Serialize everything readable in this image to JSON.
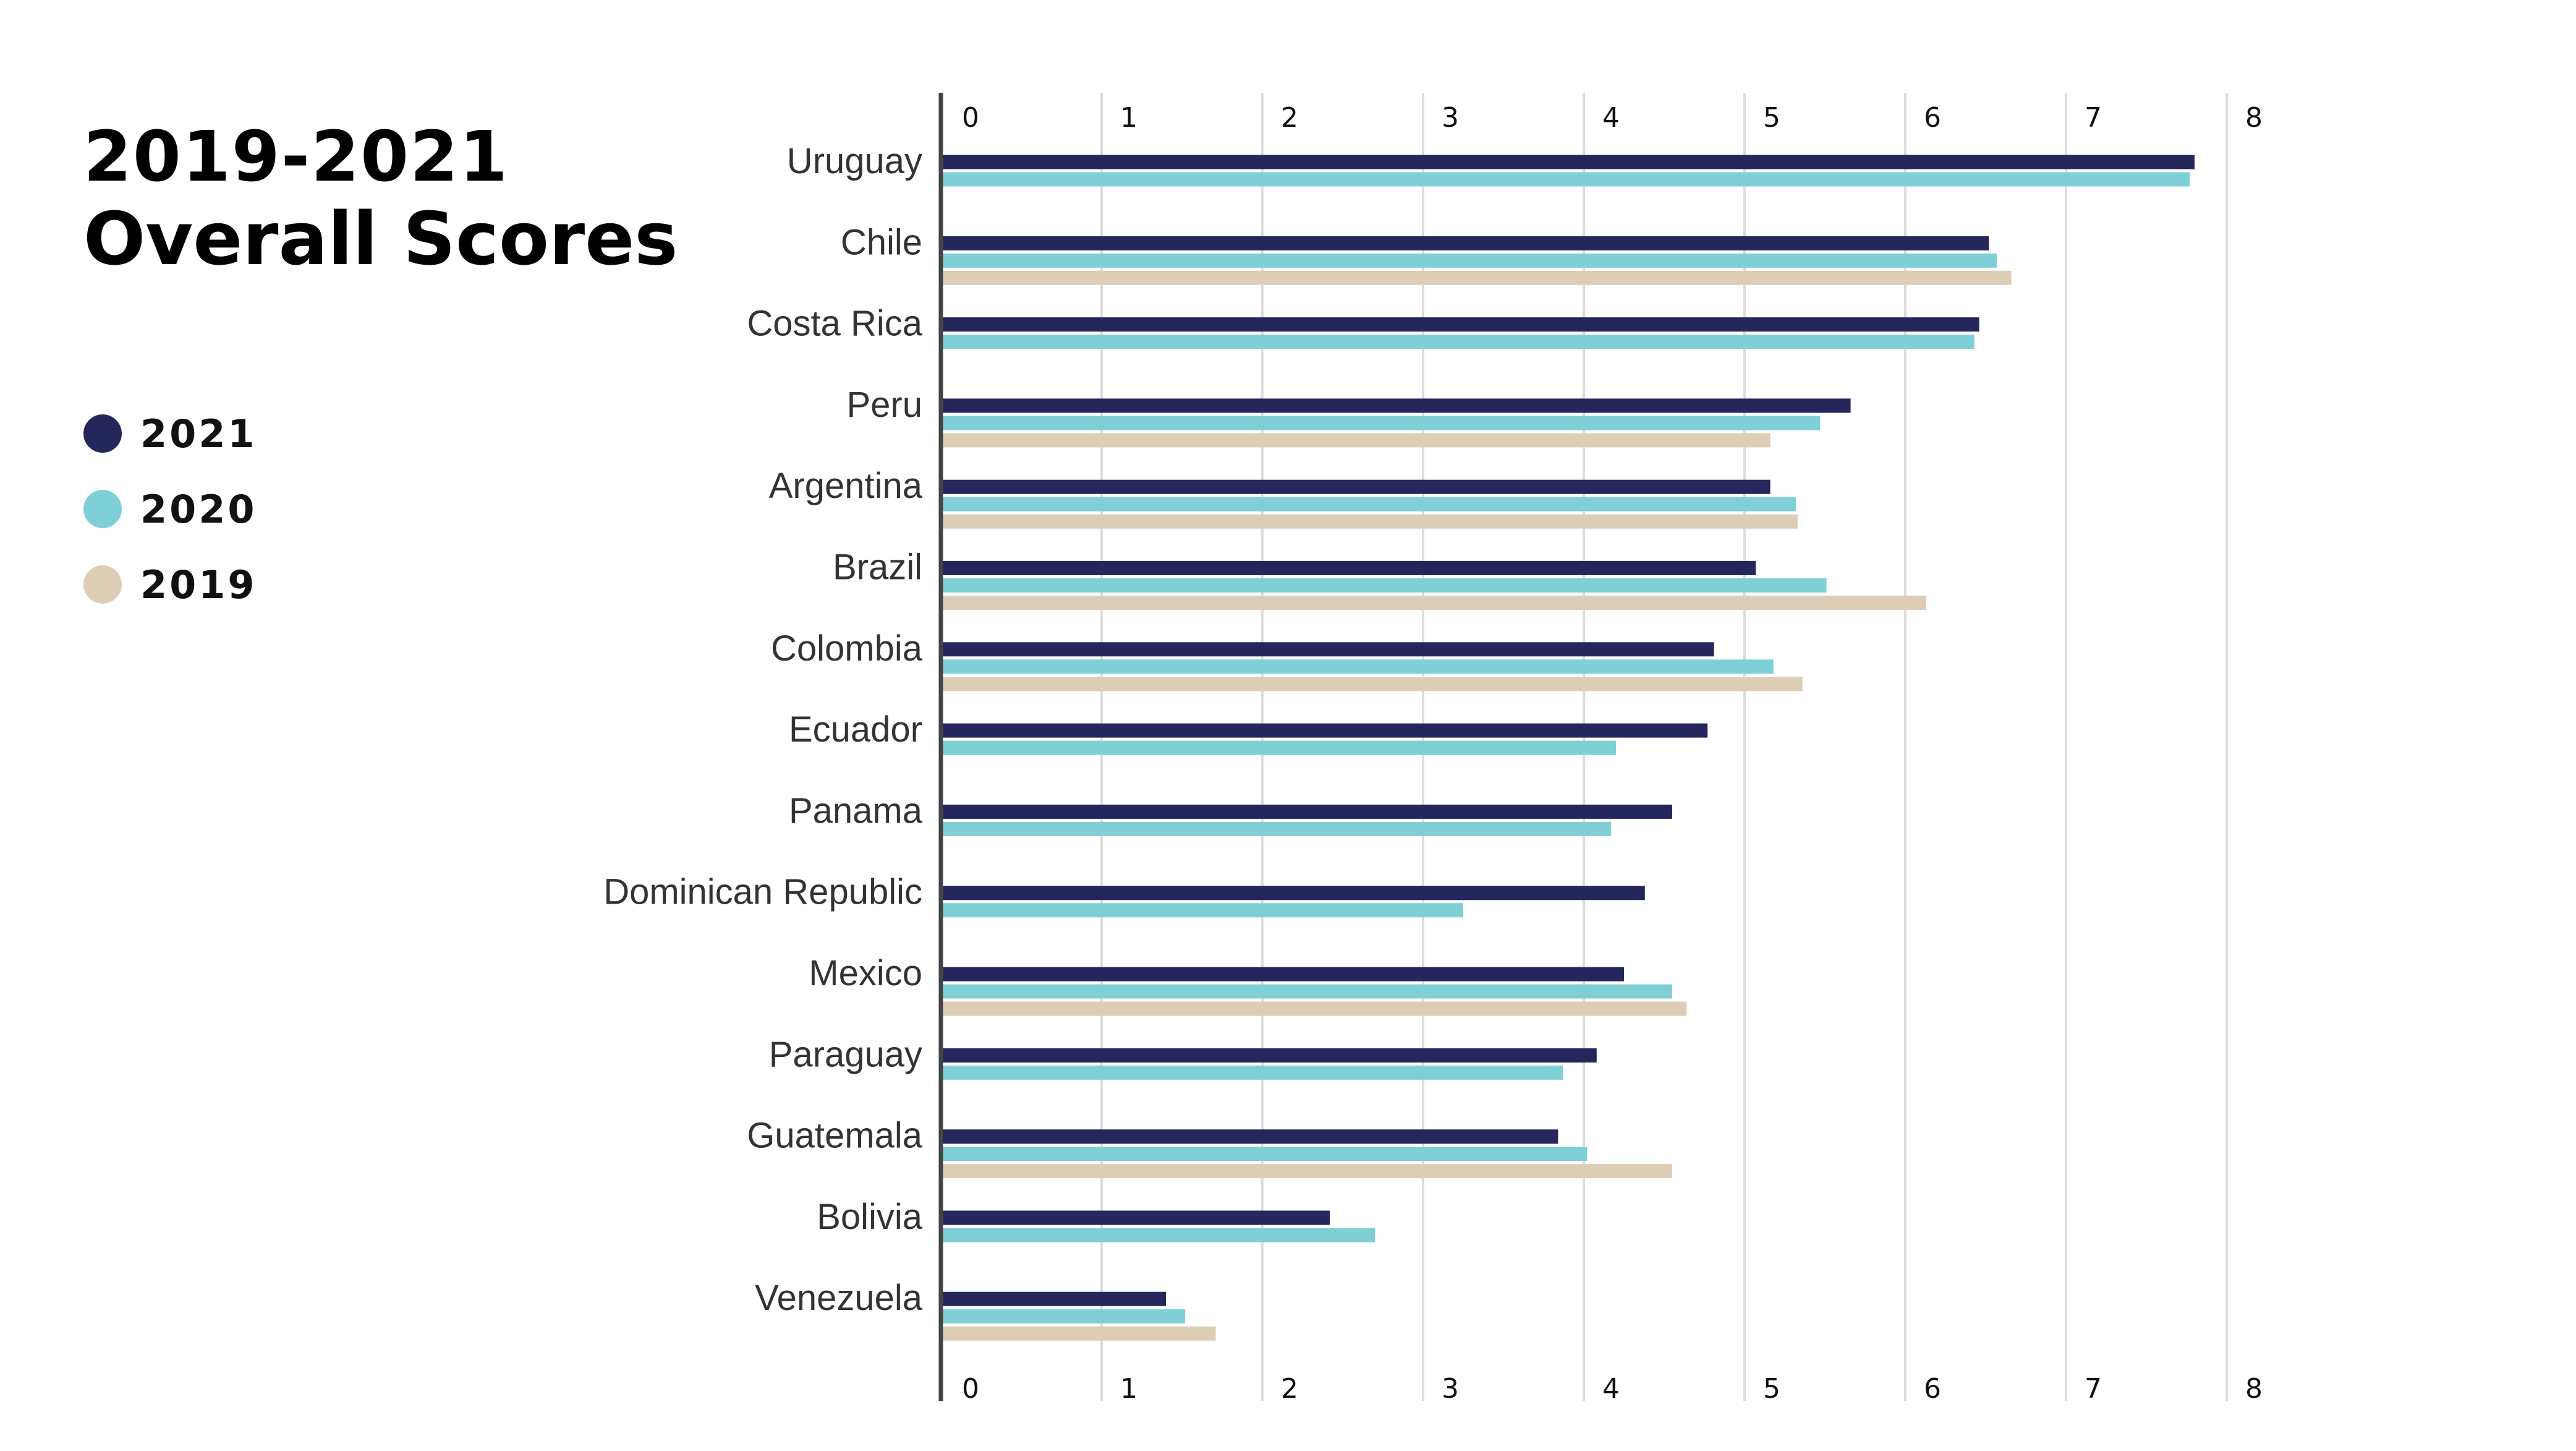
{
  "title": {
    "line1": "2019-2021",
    "line2": "Overall Scores"
  },
  "legend": [
    {
      "label": "2021",
      "color": "#25275c"
    },
    {
      "label": "2020",
      "color": "#7fd0d6"
    },
    {
      "label": "2019",
      "color": "#ddcdb5"
    }
  ],
  "chart_data": {
    "type": "bar",
    "orientation": "horizontal",
    "categories": [
      "Uruguay",
      "Chile",
      "Costa Rica",
      "Peru",
      "Argentina",
      "Brazil",
      "Colombia",
      "Ecuador",
      "Panama",
      "Dominican Republic",
      "Mexico",
      "Paraguay",
      "Guatemala",
      "Bolivia",
      "Venezuela"
    ],
    "series": [
      {
        "name": "2021",
        "color": "#25275c",
        "values": [
          7.8,
          6.52,
          6.46,
          5.66,
          5.16,
          5.07,
          4.81,
          4.77,
          4.55,
          4.38,
          4.25,
          4.08,
          3.84,
          2.42,
          1.4
        ]
      },
      {
        "name": "2020",
        "color": "#7fd0d6",
        "values": [
          7.77,
          6.57,
          6.43,
          5.47,
          5.32,
          5.51,
          5.18,
          4.2,
          4.17,
          3.25,
          4.55,
          3.87,
          4.02,
          2.7,
          1.52
        ]
      },
      {
        "name": "2019",
        "color": "#ddcdb5",
        "values": [
          null,
          6.66,
          null,
          5.16,
          5.33,
          6.13,
          5.36,
          null,
          null,
          null,
          4.64,
          null,
          4.55,
          null,
          1.71
        ]
      }
    ],
    "xlim": [
      0,
      8
    ],
    "ticks": [
      "0",
      "1",
      "2",
      "3",
      "4",
      "5",
      "6",
      "7",
      "8"
    ],
    "grid": true,
    "xlabel": "",
    "ylabel": ""
  }
}
